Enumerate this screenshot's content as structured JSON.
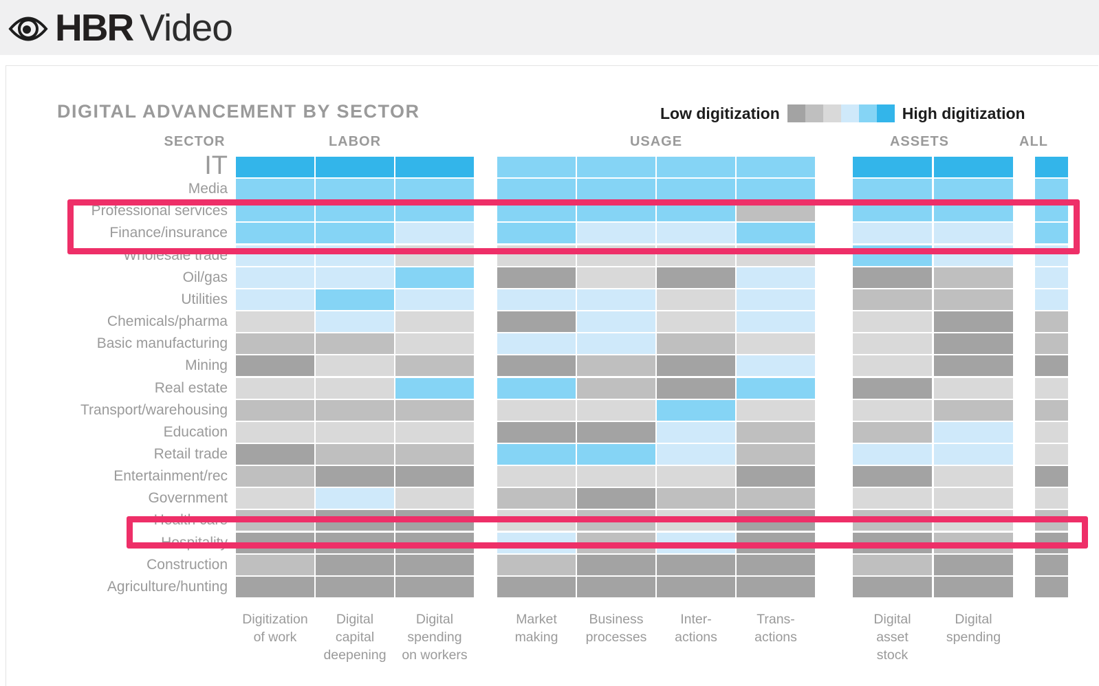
{
  "header": {
    "brand_bold": "HBR",
    "brand_light": "Video",
    "logo_icon": "eye-icon"
  },
  "chart_data": {
    "type": "heatmap",
    "title": "DIGITAL ADVANCEMENT BY SECTOR",
    "legend": {
      "low_label": "Low digitization",
      "high_label": "High digitization",
      "scale_colors": [
        "#a3a3a3",
        "#bfbfbf",
        "#d9d9d9",
        "#cfe9fa",
        "#85d4f5",
        "#33b5ea"
      ],
      "scale_note": "cell values range 1 (low digitization, dark gray) to 6 (high digitization, bright blue)"
    },
    "column_groups": [
      {
        "label": "SECTOR",
        "columns": []
      },
      {
        "label": "LABOR",
        "columns": [
          [
            "Digitization",
            "of work"
          ],
          [
            "Digital",
            "capital",
            "deepening"
          ],
          [
            "Digital",
            "spending",
            "on workers"
          ]
        ]
      },
      {
        "label": "USAGE",
        "columns": [
          [
            "Market",
            "making"
          ],
          [
            "Business",
            "processes"
          ],
          [
            "Inter-",
            "actions"
          ],
          [
            "Trans-",
            "actions"
          ]
        ]
      },
      {
        "label": "ASSETS",
        "columns": [
          [
            "Digital",
            "asset",
            "stock"
          ],
          [
            "Digital",
            "spending"
          ]
        ]
      },
      {
        "label": "ALL",
        "columns": []
      }
    ],
    "rows": [
      {
        "label": "IT",
        "labor": [
          6,
          6,
          6
        ],
        "usage": [
          5,
          5,
          5,
          5
        ],
        "assets": [
          6,
          6
        ],
        "all": 6
      },
      {
        "label": "Media",
        "labor": [
          5,
          5,
          5
        ],
        "usage": [
          5,
          5,
          5,
          5
        ],
        "assets": [
          5,
          5
        ],
        "all": 5
      },
      {
        "label": "Professional services",
        "labor": [
          5,
          5,
          5
        ],
        "usage": [
          5,
          5,
          5,
          2
        ],
        "assets": [
          5,
          5
        ],
        "all": 5
      },
      {
        "label": "Finance/insurance",
        "labor": [
          5,
          5,
          4
        ],
        "usage": [
          5,
          4,
          4,
          5
        ],
        "assets": [
          4,
          4
        ],
        "all": 5
      },
      {
        "label": "Wholesale trade",
        "labor": [
          4,
          4,
          3
        ],
        "usage": [
          3,
          3,
          3,
          3
        ],
        "assets": [
          5,
          4
        ],
        "all": 4
      },
      {
        "label": "Oil/gas",
        "labor": [
          4,
          4,
          5
        ],
        "usage": [
          1,
          3,
          1,
          4
        ],
        "assets": [
          1,
          2
        ],
        "all": 4
      },
      {
        "label": "Utilities",
        "labor": [
          4,
          5,
          4
        ],
        "usage": [
          4,
          4,
          3,
          4
        ],
        "assets": [
          2,
          2
        ],
        "all": 4
      },
      {
        "label": "Chemicals/pharma",
        "labor": [
          3,
          4,
          3
        ],
        "usage": [
          1,
          4,
          3,
          4
        ],
        "assets": [
          3,
          1
        ],
        "all": 2
      },
      {
        "label": "Basic manufacturing",
        "labor": [
          2,
          2,
          3
        ],
        "usage": [
          4,
          4,
          2,
          3
        ],
        "assets": [
          3,
          1
        ],
        "all": 2
      },
      {
        "label": "Mining",
        "labor": [
          1,
          3,
          2
        ],
        "usage": [
          1,
          2,
          1,
          4
        ],
        "assets": [
          3,
          1
        ],
        "all": 1
      },
      {
        "label": "Real estate",
        "labor": [
          3,
          3,
          5
        ],
        "usage": [
          5,
          2,
          1,
          5
        ],
        "assets": [
          1,
          3
        ],
        "all": 3
      },
      {
        "label": "Transport/warehousing",
        "labor": [
          2,
          2,
          2
        ],
        "usage": [
          3,
          3,
          5,
          3
        ],
        "assets": [
          3,
          2
        ],
        "all": 2
      },
      {
        "label": "Education",
        "labor": [
          3,
          3,
          3
        ],
        "usage": [
          1,
          1,
          4,
          2
        ],
        "assets": [
          2,
          4
        ],
        "all": 3
      },
      {
        "label": "Retail trade",
        "labor": [
          1,
          2,
          2
        ],
        "usage": [
          5,
          5,
          4,
          2
        ],
        "assets": [
          4,
          4
        ],
        "all": 3
      },
      {
        "label": "Entertainment/rec",
        "labor": [
          2,
          1,
          1
        ],
        "usage": [
          3,
          3,
          3,
          1
        ],
        "assets": [
          1,
          3
        ],
        "all": 1
      },
      {
        "label": "Government",
        "labor": [
          3,
          4,
          3
        ],
        "usage": [
          2,
          1,
          2,
          2
        ],
        "assets": [
          3,
          3
        ],
        "all": 3
      },
      {
        "label": "Health care",
        "labor": [
          2,
          1,
          1
        ],
        "usage": [
          3,
          2,
          3,
          1
        ],
        "assets": [
          2,
          3
        ],
        "all": 2
      },
      {
        "label": "Hospitality",
        "labor": [
          1,
          1,
          1
        ],
        "usage": [
          4,
          2,
          4,
          1
        ],
        "assets": [
          1,
          2
        ],
        "all": 1
      },
      {
        "label": "Construction",
        "labor": [
          2,
          1,
          1
        ],
        "usage": [
          2,
          1,
          1,
          1
        ],
        "assets": [
          2,
          1
        ],
        "all": 1
      },
      {
        "label": "Agriculture/hunting",
        "labor": [
          1,
          1,
          1
        ],
        "usage": [
          1,
          1,
          1,
          1
        ],
        "assets": [
          1,
          1
        ],
        "all": 1
      }
    ],
    "highlights": [
      {
        "rows": [
          "Professional services",
          "Finance/insurance"
        ],
        "color": "#ee2f68"
      },
      {
        "rows": [
          "Health care"
        ],
        "color": "#ee2f68"
      }
    ]
  }
}
